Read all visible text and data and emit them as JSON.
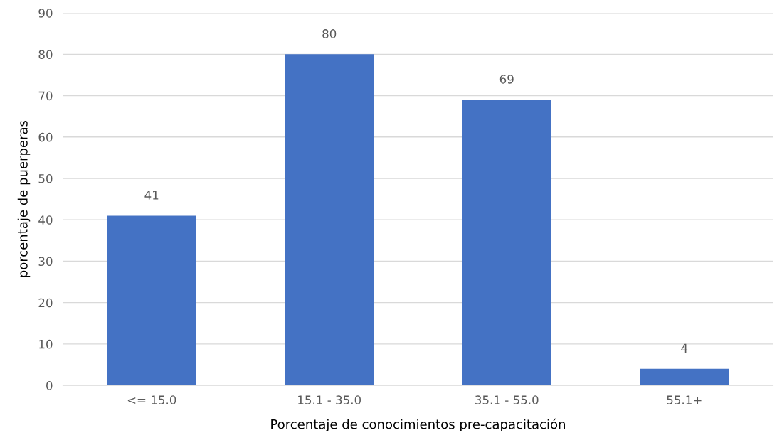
{
  "chart_data": {
    "type": "bar",
    "xlabel": "Porcentaje de conocimientos pre-capacitación",
    "ylabel": "porcentaje de puerperas",
    "categories": [
      "<= 15.0",
      "15.1 - 35.0",
      "35.1 - 55.0",
      "55.1+"
    ],
    "values": [
      41,
      80,
      69,
      4
    ],
    "color": "#4472c4",
    "ylim": [
      0,
      90
    ],
    "yticks": [
      0,
      10,
      20,
      30,
      40,
      50,
      60,
      70,
      80,
      90
    ],
    "grid": "y",
    "data_labels": true
  }
}
